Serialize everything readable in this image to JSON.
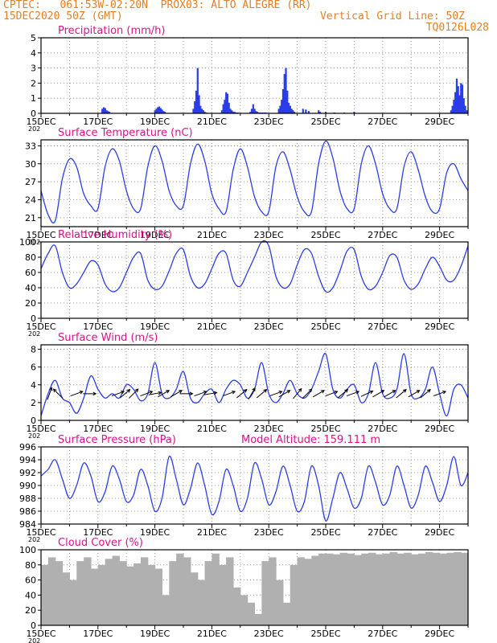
{
  "header": {
    "line1": "CPTEC:   061:53W-02:20N  PROX03: ALTO ALEGRE (RR)",
    "line2": "15DEC2020 50Z (GMT)",
    "right1": "Vertical Grid Line: 50Z",
    "right2": "TQ0126L028",
    "color": "#e67e22"
  },
  "colors": {
    "title": "#e0108a",
    "series": "#2b3de8",
    "cloud": "#b0b0b0",
    "grid": "#9a9a9a",
    "axis": "#000000"
  },
  "x_ticks": [
    "15DEC",
    "17DEC",
    "19DEC",
    "21DEC",
    "23DEC",
    "25DEC",
    "27DEC",
    "29DEC"
  ],
  "x_start_label": "202",
  "altitude_label": "Model Altitude: 159.111 m",
  "chart_data": [
    {
      "type": "bar",
      "title": "Precipitation (mm/h)",
      "ylim": [
        0,
        5
      ],
      "yticks": [
        0,
        1,
        2,
        3,
        4,
        5
      ],
      "x": [
        2.15,
        2.2,
        2.25,
        2.3,
        2.35,
        2.4,
        4.0,
        4.05,
        4.1,
        4.15,
        4.2,
        4.25,
        4.3,
        4.35,
        5.35,
        5.4,
        5.45,
        5.5,
        5.55,
        5.6,
        5.65,
        5.7,
        5.75,
        5.8,
        6.35,
        6.4,
        6.45,
        6.5,
        6.55,
        6.6,
        6.65,
        6.7,
        6.75,
        6.8,
        6.85,
        6.9,
        7.35,
        7.4,
        7.45,
        7.5,
        7.55,
        7.6,
        7.65,
        7.7,
        7.75,
        7.8,
        7.85,
        7.9,
        8.35,
        8.4,
        8.45,
        8.5,
        8.55,
        8.6,
        8.65,
        8.7,
        8.75,
        8.8,
        8.85,
        8.9,
        9.2,
        9.3,
        9.4,
        9.75,
        9.8,
        10.0,
        10.3,
        10.65,
        11.0,
        14.4,
        14.45,
        14.5,
        14.55,
        14.6,
        14.65,
        14.7,
        14.75,
        14.8,
        14.85,
        14.9,
        14.95
      ],
      "values": [
        0.3,
        0.4,
        0.35,
        0.2,
        0.15,
        0.1,
        0.2,
        0.3,
        0.4,
        0.45,
        0.35,
        0.25,
        0.15,
        0.1,
        0.3,
        0.8,
        1.5,
        3.0,
        1.2,
        0.5,
        0.3,
        0.2,
        0.1,
        0.05,
        0.2,
        0.6,
        0.9,
        1.4,
        1.3,
        0.7,
        0.3,
        0.2,
        0.1,
        0.1,
        0.05,
        0.05,
        0.1,
        0.3,
        0.6,
        0.3,
        0.15,
        0.1,
        0.05,
        0.05,
        0.05,
        0.05,
        0.05,
        0.05,
        0.3,
        0.5,
        0.9,
        1.6,
        2.6,
        3.0,
        1.5,
        0.7,
        0.5,
        0.3,
        0.2,
        0.1,
        0.3,
        0.25,
        0.15,
        0.2,
        0.1,
        0.1,
        0.05,
        0.05,
        0.1,
        0.2,
        0.5,
        0.9,
        1.4,
        2.3,
        1.8,
        1.2,
        2.0,
        1.9,
        1.0,
        0.5,
        0.2
      ]
    },
    {
      "type": "line",
      "title": "Surface Temperature (nC)",
      "ylim": [
        19.5,
        34
      ],
      "yticks": [
        21,
        24,
        27,
        30,
        33
      ],
      "x": [
        0.0,
        0.25,
        0.5,
        0.75,
        1.0,
        1.25,
        1.5,
        1.75,
        2.0,
        2.25,
        2.5,
        2.75,
        3.0,
        3.25,
        3.5,
        3.75,
        4.0,
        4.25,
        4.5,
        4.75,
        5.0,
        5.25,
        5.5,
        5.75,
        6.0,
        6.25,
        6.5,
        6.75,
        7.0,
        7.25,
        7.5,
        7.75,
        8.0,
        8.25,
        8.5,
        8.75,
        9.0,
        9.25,
        9.5,
        9.75,
        10.0,
        10.25,
        10.5,
        10.75,
        11.0,
        11.25,
        11.5,
        11.75,
        12.0,
        12.25,
        12.5,
        12.75,
        13.0,
        13.25,
        13.5,
        13.75,
        14.0,
        14.25,
        14.5,
        14.75,
        15.0
      ],
      "values": [
        25.5,
        21.5,
        20.5,
        27.5,
        30.8,
        29.5,
        25.0,
        23.0,
        22.5,
        29.5,
        32.5,
        30.5,
        25.5,
        22.5,
        22.5,
        29.5,
        33.0,
        30.5,
        25.5,
        23.0,
        23.0,
        30.0,
        33.3,
        30.5,
        25.0,
        22.5,
        22.0,
        29.0,
        32.5,
        29.5,
        24.5,
        22.0,
        22.0,
        29.5,
        32.0,
        29.0,
        24.5,
        22.0,
        22.0,
        30.0,
        33.8,
        31.0,
        25.5,
        22.5,
        22.5,
        30.0,
        33.0,
        30.0,
        25.0,
        22.5,
        22.5,
        29.5,
        32.0,
        29.0,
        24.5,
        22.0,
        22.5,
        28.5,
        30.0,
        27.5,
        25.5
      ]
    },
    {
      "type": "line",
      "title": "Relative Humidity (%)",
      "ylim": [
        0,
        100
      ],
      "yticks": [
        0,
        20,
        40,
        60,
        80,
        100
      ],
      "x": [
        0.0,
        0.25,
        0.5,
        0.75,
        1.0,
        1.25,
        1.5,
        1.75,
        2.0,
        2.25,
        2.5,
        2.75,
        3.0,
        3.25,
        3.5,
        3.75,
        4.0,
        4.25,
        4.5,
        4.75,
        5.0,
        5.25,
        5.5,
        5.75,
        6.0,
        6.25,
        6.5,
        6.75,
        7.0,
        7.25,
        7.5,
        7.75,
        8.0,
        8.25,
        8.5,
        8.75,
        9.0,
        9.25,
        9.5,
        9.75,
        10.0,
        10.25,
        10.5,
        10.75,
        11.0,
        11.25,
        11.5,
        11.75,
        12.0,
        12.25,
        12.5,
        12.75,
        13.0,
        13.25,
        13.5,
        13.75,
        14.0,
        14.25,
        14.5,
        14.75,
        15.0
      ],
      "values": [
        65,
        85,
        95,
        60,
        40,
        45,
        60,
        75,
        70,
        45,
        35,
        40,
        60,
        80,
        85,
        50,
        38,
        42,
        62,
        85,
        90,
        55,
        40,
        45,
        65,
        85,
        85,
        50,
        42,
        60,
        80,
        100,
        95,
        55,
        40,
        45,
        70,
        90,
        85,
        55,
        35,
        40,
        62,
        88,
        90,
        55,
        38,
        42,
        60,
        82,
        80,
        50,
        38,
        45,
        65,
        80,
        68,
        50,
        50,
        68,
        95
      ]
    },
    {
      "type": "line",
      "title": "Surface Wind (m/s)",
      "ylim": [
        0,
        8.5
      ],
      "yticks": [
        0,
        2,
        4,
        6,
        8
      ],
      "x": [
        0.0,
        0.25,
        0.5,
        0.75,
        1.0,
        1.25,
        1.5,
        1.75,
        2.0,
        2.25,
        2.5,
        2.75,
        3.0,
        3.25,
        3.5,
        3.75,
        4.0,
        4.25,
        4.5,
        4.75,
        5.0,
        5.25,
        5.5,
        5.75,
        6.0,
        6.25,
        6.5,
        6.75,
        7.0,
        7.25,
        7.5,
        7.75,
        8.0,
        8.25,
        8.5,
        8.75,
        9.0,
        9.25,
        9.5,
        9.75,
        10.0,
        10.25,
        10.5,
        10.75,
        11.0,
        11.25,
        11.5,
        11.75,
        12.0,
        12.25,
        12.5,
        12.75,
        13.0,
        13.25,
        13.5,
        13.75,
        14.0,
        14.25,
        14.5,
        14.75,
        15.0
      ],
      "values": [
        0.5,
        3.0,
        4.5,
        2.5,
        2.0,
        0.8,
        2.5,
        5.0,
        3.5,
        2.5,
        3.0,
        2.5,
        4.0,
        3.5,
        2.2,
        3.0,
        6.5,
        3.0,
        2.5,
        3.5,
        5.5,
        2.5,
        2.0,
        3.0,
        3.5,
        2.0,
        3.5,
        4.5,
        4.0,
        2.5,
        3.5,
        6.5,
        3.0,
        2.0,
        3.0,
        4.5,
        3.0,
        2.5,
        3.5,
        5.5,
        7.5,
        3.5,
        2.5,
        3.5,
        4.0,
        2.0,
        3.0,
        6.5,
        3.0,
        2.5,
        3.5,
        7.5,
        3.0,
        2.5,
        3.5,
        6.0,
        3.0,
        0.5,
        3.5,
        4.0,
        2.5
      ]
    },
    {
      "type": "line",
      "title": "Surface Pressure (hPa)",
      "ylim": [
        984,
        996
      ],
      "yticks": [
        984,
        986,
        988,
        990,
        992,
        994,
        996
      ],
      "x": [
        0.0,
        0.25,
        0.5,
        0.75,
        1.0,
        1.25,
        1.5,
        1.75,
        2.0,
        2.25,
        2.5,
        2.75,
        3.0,
        3.25,
        3.5,
        3.75,
        4.0,
        4.25,
        4.5,
        4.75,
        5.0,
        5.25,
        5.5,
        5.75,
        6.0,
        6.25,
        6.5,
        6.75,
        7.0,
        7.25,
        7.5,
        7.75,
        8.0,
        8.25,
        8.5,
        8.75,
        9.0,
        9.25,
        9.5,
        9.75,
        10.0,
        10.25,
        10.5,
        10.75,
        11.0,
        11.25,
        11.5,
        11.75,
        12.0,
        12.25,
        12.5,
        12.75,
        13.0,
        13.25,
        13.5,
        13.75,
        14.0,
        14.25,
        14.5,
        14.75,
        15.0
      ],
      "values": [
        991.5,
        992.5,
        994.0,
        991.0,
        988.0,
        990.0,
        993.5,
        991.5,
        987.5,
        989.0,
        993.0,
        991.0,
        987.5,
        988.5,
        992.5,
        990.0,
        986.0,
        988.0,
        994.5,
        991.0,
        987.0,
        989.5,
        993.5,
        990.0,
        985.5,
        987.5,
        992.5,
        990.0,
        986.0,
        988.0,
        993.5,
        991.0,
        987.0,
        989.0,
        993.0,
        990.0,
        986.0,
        987.5,
        993.0,
        990.0,
        984.5,
        988.0,
        992.0,
        989.5,
        986.5,
        988.0,
        993.0,
        990.5,
        987.0,
        988.5,
        993.0,
        990.0,
        986.5,
        988.5,
        993.0,
        990.5,
        987.5,
        990.0,
        994.5,
        990.0,
        992.0
      ]
    },
    {
      "type": "bar",
      "title": "Cloud Cover (%)",
      "ylim": [
        0,
        100
      ],
      "yticks": [
        0,
        20,
        40,
        60,
        80,
        100
      ],
      "x": [
        0.0,
        0.25,
        0.5,
        0.75,
        1.0,
        1.25,
        1.5,
        1.75,
        2.0,
        2.25,
        2.5,
        2.75,
        3.0,
        3.25,
        3.5,
        3.75,
        4.0,
        4.25,
        4.5,
        4.75,
        5.0,
        5.25,
        5.5,
        5.75,
        6.0,
        6.25,
        6.5,
        6.75,
        7.0,
        7.25,
        7.5,
        7.75,
        8.0,
        8.25,
        8.5,
        8.75,
        9.0,
        9.25,
        9.5,
        9.75,
        10.0,
        10.25,
        10.5,
        10.75,
        11.0,
        11.25,
        11.5,
        11.75,
        12.0,
        12.25,
        12.5,
        12.75,
        13.0,
        13.25,
        13.5,
        13.75,
        14.0,
        14.25,
        14.5,
        14.75
      ],
      "values": [
        80,
        90,
        85,
        70,
        60,
        85,
        90,
        75,
        80,
        88,
        92,
        85,
        78,
        82,
        90,
        80,
        75,
        40,
        85,
        95,
        90,
        70,
        60,
        85,
        95,
        80,
        90,
        50,
        40,
        30,
        15,
        85,
        90,
        60,
        30,
        80,
        90,
        88,
        92,
        95,
        95,
        94,
        96,
        95,
        93,
        95,
        96,
        94,
        95,
        97,
        95,
        96,
        94,
        95,
        97,
        96,
        95,
        96,
        97,
        96
      ]
    }
  ],
  "wind_arrows": [
    {
      "x": 0.3,
      "dir": 200
    },
    {
      "x": 0.6,
      "dir": 135
    },
    {
      "x": 1.25,
      "dir": 250
    },
    {
      "x": 1.7,
      "dir": 270
    },
    {
      "x": 2.7,
      "dir": 250
    },
    {
      "x": 2.95,
      "dir": 230
    },
    {
      "x": 3.25,
      "dir": 225
    },
    {
      "x": 3.7,
      "dir": 250
    },
    {
      "x": 4.0,
      "dir": 260
    },
    {
      "x": 4.3,
      "dir": 240
    },
    {
      "x": 4.75,
      "dir": 240
    },
    {
      "x": 5.1,
      "dir": 270
    },
    {
      "x": 5.6,
      "dir": 250
    },
    {
      "x": 5.95,
      "dir": 260
    },
    {
      "x": 6.6,
      "dir": 250
    },
    {
      "x": 7.05,
      "dir": 230
    },
    {
      "x": 7.4,
      "dir": 210
    },
    {
      "x": 7.75,
      "dir": 230
    },
    {
      "x": 8.25,
      "dir": 250
    },
    {
      "x": 8.55,
      "dir": 240
    },
    {
      "x": 9.0,
      "dir": 220
    },
    {
      "x": 9.35,
      "dir": 225
    },
    {
      "x": 9.75,
      "dir": 240
    },
    {
      "x": 10.2,
      "dir": 250
    },
    {
      "x": 10.6,
      "dir": 230
    },
    {
      "x": 10.95,
      "dir": 250
    },
    {
      "x": 11.45,
      "dir": 245
    },
    {
      "x": 11.85,
      "dir": 240
    },
    {
      "x": 12.25,
      "dir": 240
    },
    {
      "x": 12.65,
      "dir": 230
    },
    {
      "x": 13.1,
      "dir": 240
    },
    {
      "x": 13.5,
      "dir": 230
    },
    {
      "x": 14.0,
      "dir": 250
    }
  ]
}
